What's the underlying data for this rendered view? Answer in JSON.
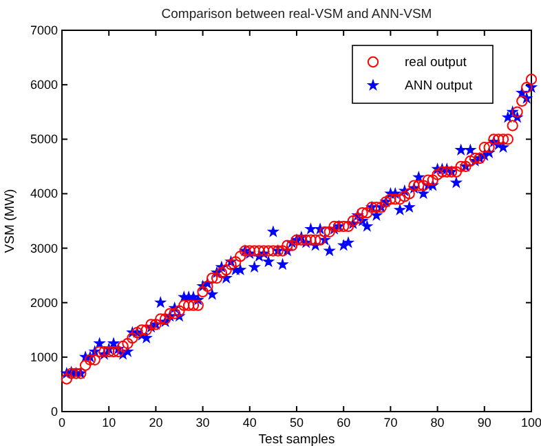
{
  "chart_data": {
    "type": "scatter",
    "title": "Comparison between real-VSM and ANN-VSM",
    "xlabel": "Test samples",
    "ylabel": "VSM (MW)",
    "x": [
      1,
      2,
      3,
      4,
      5,
      6,
      7,
      8,
      9,
      10,
      11,
      12,
      13,
      14,
      15,
      16,
      17,
      18,
      19,
      20,
      21,
      22,
      23,
      24,
      25,
      26,
      27,
      28,
      29,
      30,
      31,
      32,
      33,
      34,
      35,
      36,
      37,
      38,
      39,
      40,
      41,
      42,
      43,
      44,
      45,
      46,
      47,
      48,
      49,
      50,
      51,
      52,
      53,
      54,
      55,
      56,
      57,
      58,
      59,
      60,
      61,
      62,
      63,
      64,
      65,
      66,
      67,
      68,
      69,
      70,
      71,
      72,
      73,
      74,
      75,
      76,
      77,
      78,
      79,
      80,
      81,
      82,
      83,
      84,
      85,
      86,
      87,
      88,
      89,
      90,
      91,
      92,
      93,
      94,
      95,
      96,
      97,
      98,
      99,
      100
    ],
    "series": [
      {
        "name": "real output",
        "color": "#ff0000",
        "marker": "circle",
        "values": [
          600,
          700,
          700,
          700,
          850,
          950,
          950,
          1100,
          1100,
          1100,
          1100,
          1100,
          1200,
          1250,
          1350,
          1450,
          1500,
          1500,
          1600,
          1600,
          1700,
          1700,
          1800,
          1800,
          1850,
          1950,
          1950,
          1950,
          1950,
          2200,
          2300,
          2450,
          2450,
          2550,
          2600,
          2700,
          2750,
          2850,
          2950,
          2950,
          2950,
          2950,
          2950,
          2950,
          2950,
          2950,
          2950,
          3050,
          3050,
          3150,
          3150,
          3150,
          3150,
          3150,
          3150,
          3300,
          3300,
          3400,
          3400,
          3400,
          3400,
          3500,
          3550,
          3650,
          3650,
          3750,
          3750,
          3750,
          3850,
          3900,
          3900,
          3900,
          3950,
          4000,
          4150,
          4150,
          4150,
          4250,
          4250,
          4350,
          4400,
          4400,
          4400,
          4400,
          4500,
          4500,
          4600,
          4650,
          4650,
          4850,
          4850,
          5000,
          5000,
          5000,
          5000,
          5250,
          5500,
          5700,
          5950,
          6100
        ]
      },
      {
        "name": "ANN output",
        "color": "#0000ff",
        "marker": "star",
        "values": [
          700,
          720,
          700,
          700,
          1000,
          1000,
          1100,
          1250,
          1050,
          1150,
          1250,
          1150,
          1050,
          1100,
          1450,
          1450,
          1400,
          1350,
          1550,
          1600,
          2000,
          1650,
          1750,
          1900,
          1750,
          2100,
          2100,
          2100,
          2050,
          2300,
          2350,
          2150,
          2550,
          2650,
          2450,
          2750,
          2600,
          2600,
          2950,
          2900,
          2650,
          2850,
          2900,
          2750,
          3300,
          2950,
          2700,
          2950,
          3100,
          3150,
          3200,
          3100,
          3350,
          3050,
          3350,
          3150,
          2950,
          3350,
          3400,
          3050,
          3100,
          3450,
          3600,
          3500,
          3400,
          3750,
          3600,
          3750,
          3850,
          4000,
          4000,
          3700,
          4050,
          3750,
          4100,
          4300,
          4000,
          4150,
          4150,
          4450,
          4450,
          4450,
          4400,
          4200,
          4800,
          4500,
          4800,
          4600,
          4650,
          4700,
          4750,
          4950,
          4900,
          4850,
          5400,
          5500,
          5400,
          5850,
          5750,
          5950
        ]
      }
    ],
    "xlim": [
      0,
      100
    ],
    "ylim": [
      0,
      7000
    ],
    "xticks": [
      0,
      10,
      20,
      30,
      40,
      50,
      60,
      70,
      80,
      90,
      100
    ],
    "yticks": [
      0,
      1000,
      2000,
      3000,
      4000,
      5000,
      6000,
      7000
    ],
    "grid": false,
    "legend": "top right"
  }
}
